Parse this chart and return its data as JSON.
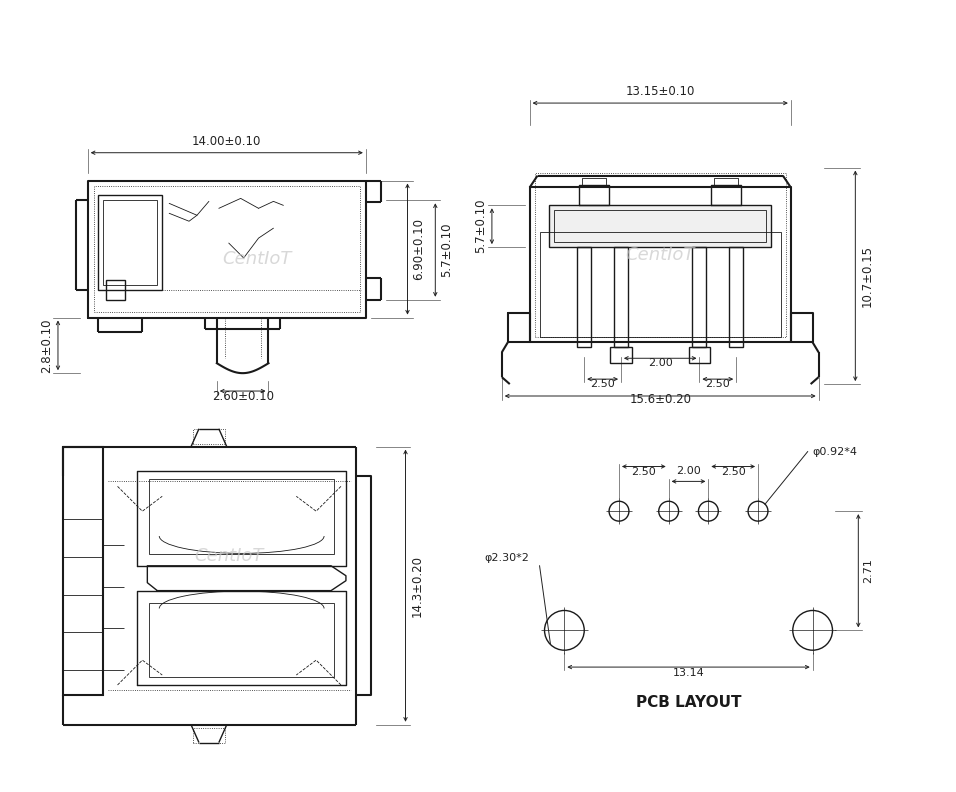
{
  "bg_color": "#ffffff",
  "line_color": "#1a1a1a",
  "dim_color": "#222222",
  "watermark_color": "#c8c8c8",
  "watermark_text": "CentIoT",
  "views": {
    "top_left": {
      "dim_width": "14.00±0.10",
      "dim_height_outer": "6.90±0.10",
      "dim_height_inner": "5.7±0.10",
      "dim_pin_width": "2.60±0.10",
      "dim_pin_height": "2.8±0.10"
    },
    "top_right": {
      "dim_width": "13.15±0.10",
      "dim_height": "10.7±0.15",
      "dim_inner_height": "5.7±0.10",
      "dim_pin_spacing1": "2.50",
      "dim_pin_spacing2": "2.50",
      "dim_center": "2.00",
      "dim_bottom": "15.6±0.20"
    },
    "bottom_left": {
      "dim_height": "14.3±0.20"
    },
    "bottom_right": {
      "title": "PCB LAYOUT",
      "dim_hole_large": "φ2.30*2",
      "dim_hole_small": "φ0.92*4",
      "dim_top_width": "2.00",
      "dim_spacing_left": "2.50",
      "dim_spacing_right": "2.50",
      "dim_total": "13.14",
      "dim_right_height": "2.71"
    }
  }
}
